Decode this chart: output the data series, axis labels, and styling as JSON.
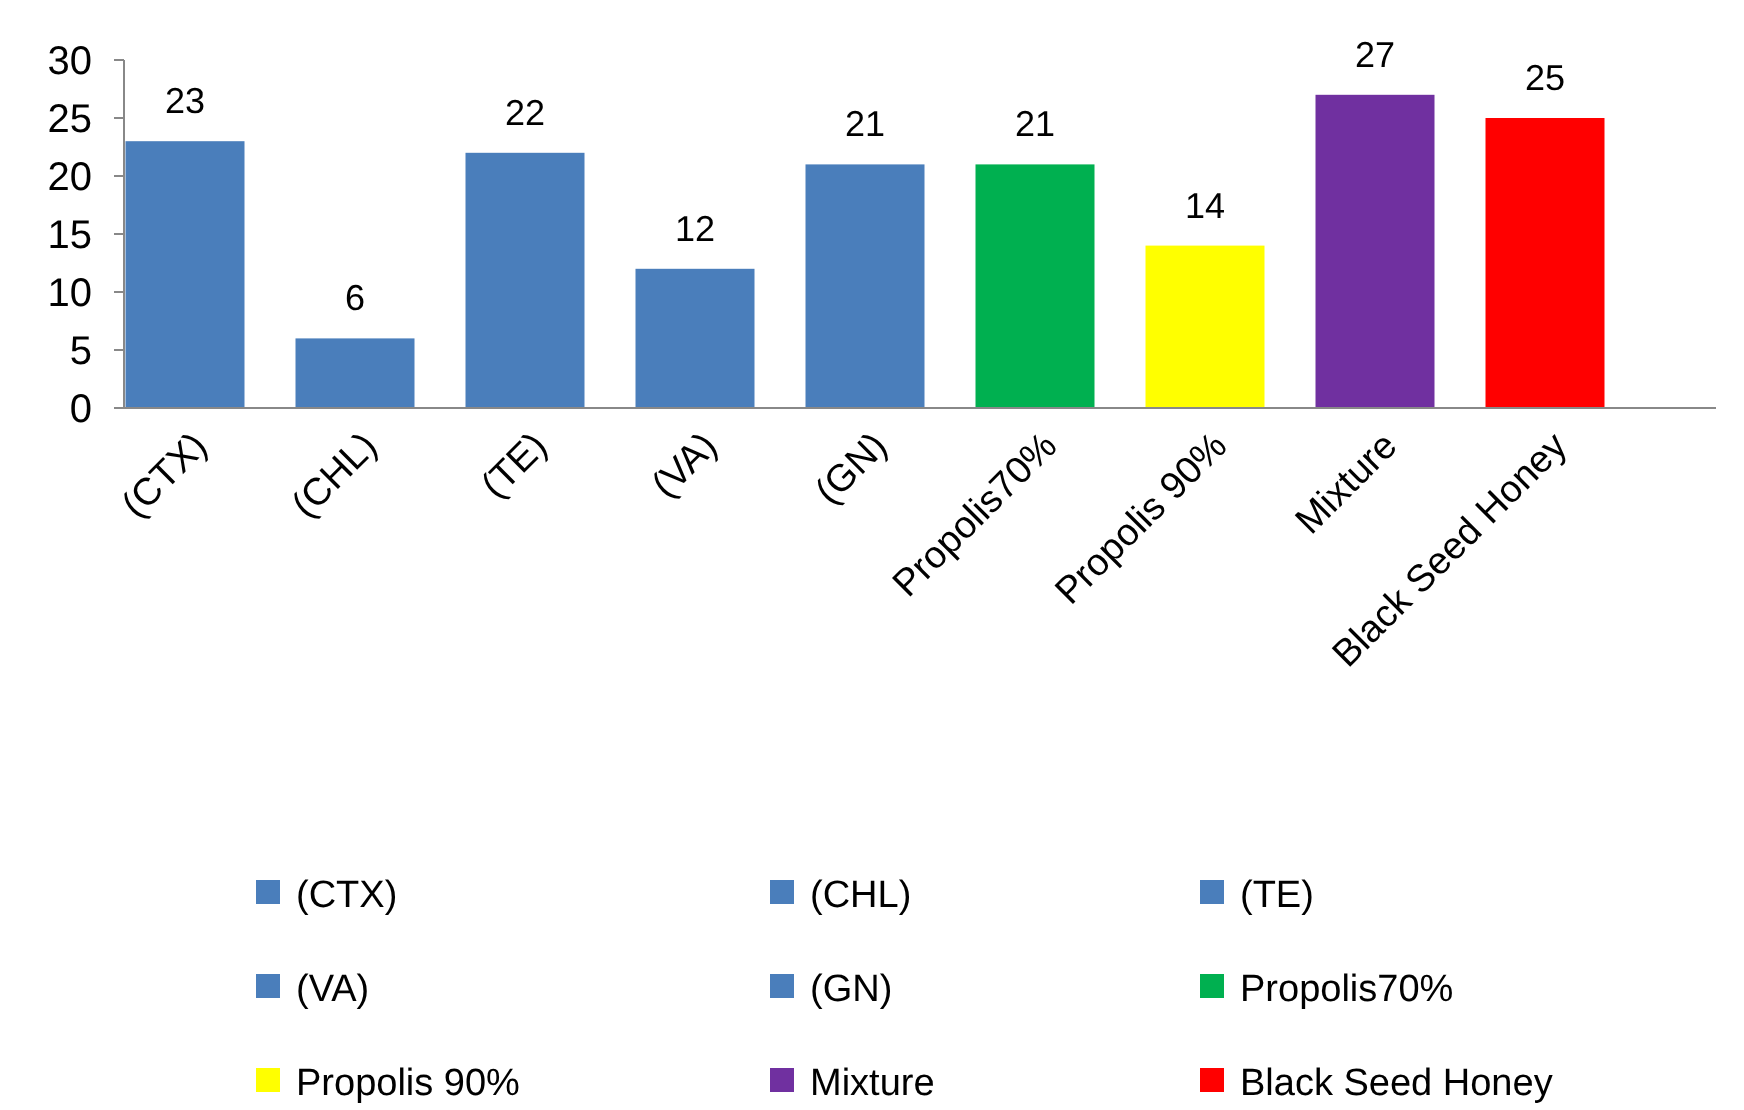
{
  "chart_data": {
    "type": "bar",
    "categories": [
      "(CTX)",
      "(CHL)",
      "(TE)",
      "(VA)",
      "(GN)",
      "Propolis70%",
      "Propolis 90%",
      "Mixture",
      "Black Seed Honey"
    ],
    "series": [
      {
        "name": "(CTX)",
        "color": "#4a7ebb",
        "values": [
          23,
          null,
          null,
          null,
          null,
          null,
          null,
          null,
          null
        ]
      },
      {
        "name": "(CHL)",
        "color": "#4a7ebb",
        "values": [
          null,
          6,
          null,
          null,
          null,
          null,
          null,
          null,
          null
        ]
      },
      {
        "name": "(TE)",
        "color": "#4a7ebb",
        "values": [
          null,
          null,
          22,
          null,
          null,
          null,
          null,
          null,
          null
        ]
      },
      {
        "name": "(VA)",
        "color": "#4a7ebb",
        "values": [
          null,
          null,
          null,
          12,
          null,
          null,
          null,
          null,
          null
        ]
      },
      {
        "name": "(GN)",
        "color": "#4a7ebb",
        "values": [
          null,
          null,
          null,
          null,
          21,
          null,
          null,
          null,
          null
        ]
      },
      {
        "name": "Propolis70%",
        "color": "#00b050",
        "values": [
          null,
          null,
          null,
          null,
          null,
          21,
          null,
          null,
          null
        ]
      },
      {
        "name": "Propolis 90%",
        "color": "#ffff00",
        "values": [
          null,
          null,
          null,
          null,
          null,
          null,
          14,
          null,
          null
        ]
      },
      {
        "name": "Mixture",
        "color": "#7030a0",
        "values": [
          null,
          null,
          null,
          null,
          null,
          null,
          null,
          27,
          null
        ]
      },
      {
        "name": "Black Seed Honey",
        "color": "#ff0000",
        "values": [
          null,
          null,
          null,
          null,
          null,
          null,
          null,
          null,
          25
        ]
      }
    ],
    "ylim": [
      0,
      30
    ],
    "yticks": [
      0,
      5,
      10,
      15,
      20,
      25,
      30
    ],
    "data_labels": true,
    "legend": "bottom",
    "grid": false
  }
}
